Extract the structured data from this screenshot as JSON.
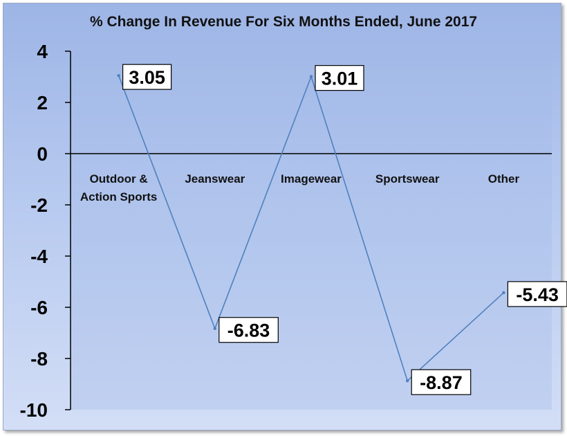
{
  "chart_data": {
    "type": "line",
    "title": "% Change In Revenue For Six Months Ended, June 2017",
    "categories": [
      "Outdoor & Action Sports",
      "Jeanswear",
      "Imagewear",
      "Sportswear",
      "Other"
    ],
    "category_lines": [
      [
        "Outdoor &",
        "Action Sports"
      ],
      [
        "Jeanswear"
      ],
      [
        "Imagewear"
      ],
      [
        "Sportswear"
      ],
      [
        "Other"
      ]
    ],
    "values": [
      3.05,
      -6.83,
      3.01,
      -8.87,
      -5.43
    ],
    "data_labels": [
      "3.05",
      "-6.83",
      "3.01",
      "-8.87",
      "-5.43"
    ],
    "ylim": [
      -10,
      4
    ],
    "yticks": [
      4,
      2,
      0,
      -2,
      -4,
      -6,
      -8,
      -10
    ],
    "xlabel": "",
    "ylabel": "",
    "line_color": "#4f81bd",
    "grid": false,
    "legend": "none"
  }
}
